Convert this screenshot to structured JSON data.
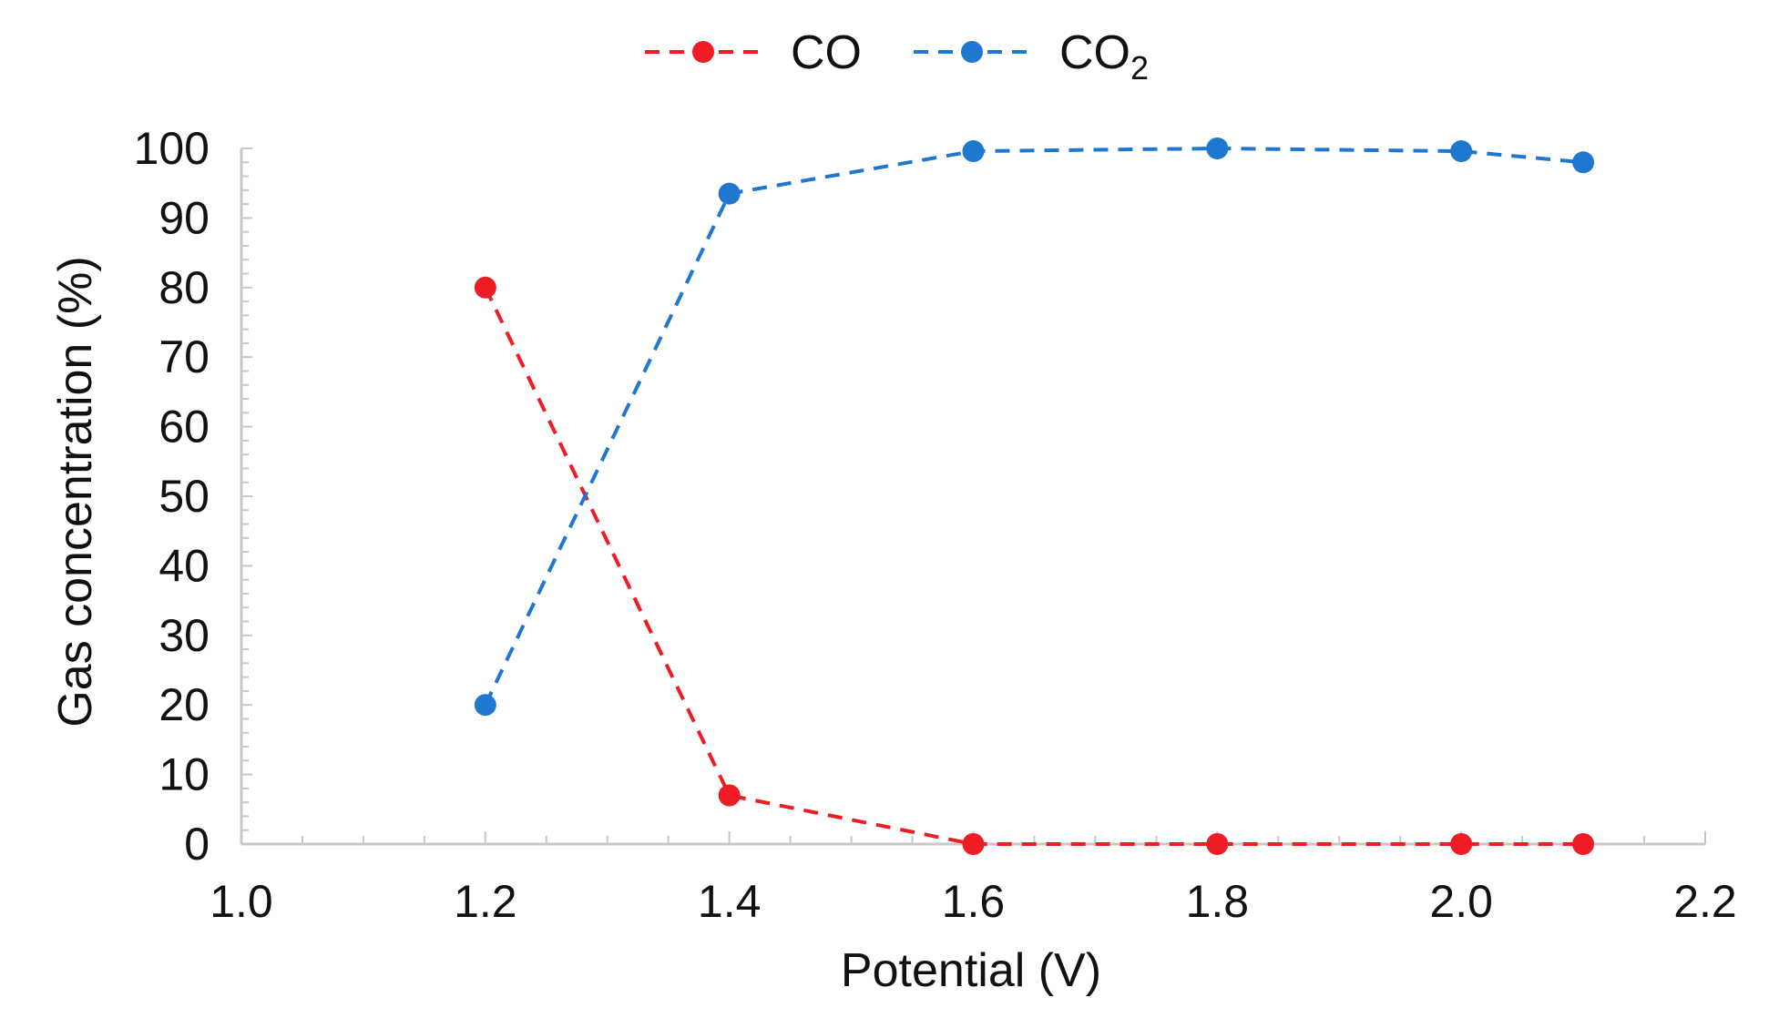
{
  "chart_data": {
    "type": "line",
    "title": "",
    "xlabel": "Potential (V)",
    "ylabel": "Gas concentration (%)",
    "xlim": [
      1.0,
      2.2
    ],
    "ylim": [
      0,
      100
    ],
    "x_ticks": [
      "1.0",
      "1.2",
      "1.4",
      "1.6",
      "1.8",
      "2.0",
      "2.2"
    ],
    "y_ticks": [
      "0",
      "10",
      "20",
      "30",
      "40",
      "50",
      "60",
      "70",
      "80",
      "90",
      "100"
    ],
    "grid": false,
    "legend_position": "top-center",
    "series": [
      {
        "name": "CO",
        "legend_main": "CO",
        "legend_sub": "",
        "color": "#ee1c25",
        "line_style": "dashed",
        "marker": "circle",
        "x": [
          1.2,
          1.4,
          1.6,
          1.8,
          2.0,
          2.1
        ],
        "values": [
          80,
          7,
          0,
          0,
          0,
          0
        ]
      },
      {
        "name": "CO2",
        "legend_main": "CO",
        "legend_sub": "2",
        "color": "#1f77d0",
        "line_style": "dashed",
        "marker": "circle",
        "x": [
          1.2,
          1.4,
          1.6,
          1.8,
          2.0,
          2.1
        ],
        "values": [
          20,
          93.5,
          99.6,
          100,
          99.6,
          98
        ]
      }
    ]
  }
}
